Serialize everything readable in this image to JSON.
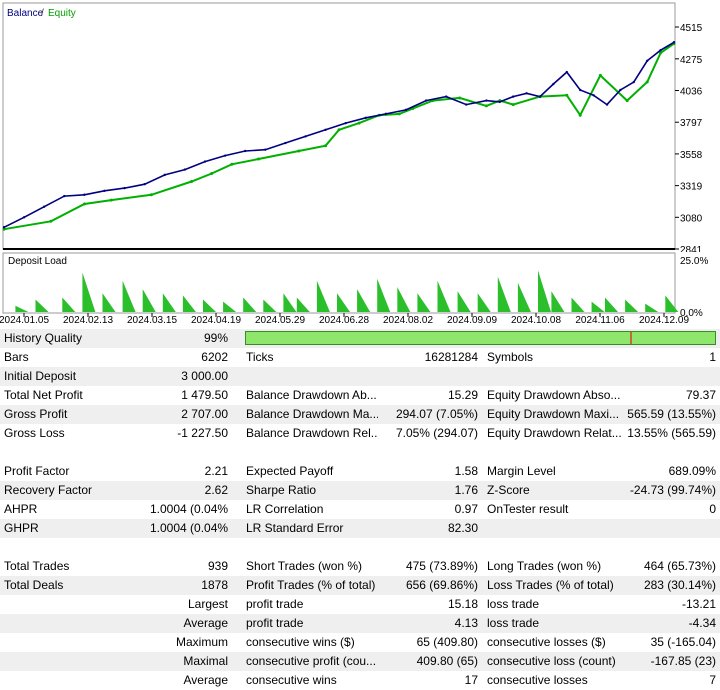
{
  "chart_data": [
    {
      "type": "line",
      "legend": [
        "Balance",
        "Equity"
      ],
      "legend_placement": "top-left",
      "y_ticks": [
        "4515",
        "4275",
        "4036",
        "3797",
        "3558",
        "3319",
        "3080",
        "2841"
      ],
      "ylim": [
        2841,
        4515
      ],
      "series": [
        {
          "name": "Balance",
          "color": "#000080",
          "x": [
            0,
            0.03,
            0.06,
            0.09,
            0.12,
            0.15,
            0.18,
            0.21,
            0.24,
            0.27,
            0.3,
            0.33,
            0.36,
            0.39,
            0.42,
            0.45,
            0.48,
            0.51,
            0.54,
            0.57,
            0.6,
            0.63,
            0.66,
            0.69,
            0.72,
            0.74,
            0.76,
            0.78,
            0.8,
            0.82,
            0.84,
            0.86,
            0.88,
            0.9,
            0.92,
            0.94,
            0.96,
            0.98,
            1.0
          ],
          "values": [
            3005,
            3080,
            3160,
            3240,
            3250,
            3280,
            3300,
            3330,
            3400,
            3440,
            3500,
            3545,
            3580,
            3590,
            3640,
            3690,
            3740,
            3790,
            3830,
            3860,
            3890,
            3960,
            3990,
            3930,
            3960,
            3950,
            3990,
            4015,
            3990,
            4085,
            4175,
            4040,
            4000,
            3930,
            4040,
            4100,
            4260,
            4340,
            4400
          ]
        },
        {
          "name": "Equity",
          "color": "#00b000",
          "x": [
            0,
            0.07,
            0.12,
            0.16,
            0.22,
            0.28,
            0.31,
            0.34,
            0.38,
            0.44,
            0.48,
            0.5,
            0.53,
            0.56,
            0.59,
            0.61,
            0.64,
            0.68,
            0.72,
            0.74,
            0.76,
            0.8,
            0.84,
            0.86,
            0.89,
            0.93,
            0.96,
            0.98,
            1.0
          ],
          "values": [
            2990,
            3050,
            3180,
            3210,
            3250,
            3350,
            3410,
            3480,
            3520,
            3580,
            3620,
            3740,
            3790,
            3850,
            3860,
            3900,
            3960,
            3980,
            3920,
            3960,
            3930,
            3990,
            4000,
            3850,
            4150,
            3960,
            4100,
            4320,
            4390
          ]
        }
      ]
    },
    {
      "type": "area",
      "title": "Deposit Load",
      "y_ticks": [
        "25.0%",
        "0.0%"
      ],
      "ylim": [
        0,
        25
      ],
      "x_ticks": [
        "2024.01.05",
        "2024.02.13",
        "2024.03.15",
        "2024.04.19",
        "2024.05.29",
        "2024.06.28",
        "2024.08.02",
        "2024.09.09",
        "2024.10.08",
        "2024.11.06",
        "2024.12.09"
      ],
      "peaks": [
        {
          "x": 0.02,
          "v": 3
        },
        {
          "x": 0.05,
          "v": 6
        },
        {
          "x": 0.09,
          "v": 7
        },
        {
          "x": 0.12,
          "v": 19
        },
        {
          "x": 0.15,
          "v": 9
        },
        {
          "x": 0.18,
          "v": 15
        },
        {
          "x": 0.21,
          "v": 11
        },
        {
          "x": 0.24,
          "v": 9
        },
        {
          "x": 0.27,
          "v": 8
        },
        {
          "x": 0.3,
          "v": 6
        },
        {
          "x": 0.33,
          "v": 5
        },
        {
          "x": 0.36,
          "v": 7
        },
        {
          "x": 0.39,
          "v": 6
        },
        {
          "x": 0.42,
          "v": 9
        },
        {
          "x": 0.44,
          "v": 7
        },
        {
          "x": 0.47,
          "v": 15
        },
        {
          "x": 0.5,
          "v": 9
        },
        {
          "x": 0.53,
          "v": 11
        },
        {
          "x": 0.56,
          "v": 16
        },
        {
          "x": 0.59,
          "v": 12
        },
        {
          "x": 0.62,
          "v": 9
        },
        {
          "x": 0.65,
          "v": 15
        },
        {
          "x": 0.68,
          "v": 10
        },
        {
          "x": 0.71,
          "v": 9
        },
        {
          "x": 0.74,
          "v": 17
        },
        {
          "x": 0.77,
          "v": 14
        },
        {
          "x": 0.8,
          "v": 20
        },
        {
          "x": 0.82,
          "v": 10
        },
        {
          "x": 0.85,
          "v": 7
        },
        {
          "x": 0.88,
          "v": 5
        },
        {
          "x": 0.9,
          "v": 7
        },
        {
          "x": 0.93,
          "v": 6
        },
        {
          "x": 0.96,
          "v": 4
        },
        {
          "x": 0.99,
          "v": 8
        }
      ]
    }
  ],
  "report": {
    "history_quality": {
      "label": "History Quality",
      "value": "99%",
      "fill_percent": 99
    },
    "rows_top": [
      {
        "l1": "Bars",
        "v1": "6202",
        "l2": "Ticks",
        "v2": "16281284",
        "l3": "Symbols",
        "v3": "1"
      },
      {
        "l1": "Initial Deposit",
        "v1": "3 000.00",
        "l2": "",
        "v2": "",
        "l3": "",
        "v3": ""
      },
      {
        "l1": "Total Net Profit",
        "v1": "1 479.50",
        "l2": "Balance Drawdown Ab...",
        "v2": "15.29",
        "l3": "Equity Drawdown Abso...",
        "v3": "79.37"
      },
      {
        "l1": "Gross Profit",
        "v1": "2 707.00",
        "l2": "Balance Drawdown Ma...",
        "v2": "294.07 (7.05%)",
        "l3": "Equity Drawdown Maxi...",
        "v3": "565.59 (13.55%)"
      },
      {
        "l1": "Gross Loss",
        "v1": "-1 227.50",
        "l2": "Balance Drawdown Rel...",
        "v2": "7.05% (294.07)",
        "l3": "Equity Drawdown Relat...",
        "v3": "13.55% (565.59)"
      }
    ],
    "rows_mid": [
      {
        "l1": "Profit Factor",
        "v1": "2.21",
        "l2": "Expected Payoff",
        "v2": "1.58",
        "l3": "Margin Level",
        "v3": "689.09%"
      },
      {
        "l1": "Recovery Factor",
        "v1": "2.62",
        "l2": "Sharpe Ratio",
        "v2": "1.76",
        "l3": "Z-Score",
        "v3": "-24.73 (99.74%)"
      },
      {
        "l1": "AHPR",
        "v1": "1.0004 (0.04%)",
        "l2": "LR Correlation",
        "v2": "0.97",
        "l3": "OnTester result",
        "v3": "0"
      },
      {
        "l1": "GHPR",
        "v1": "1.0004 (0.04%)",
        "l2": "LR Standard Error",
        "v2": "82.30",
        "l3": "",
        "v3": ""
      }
    ],
    "rows_bottom": [
      {
        "l1": "Total Trades",
        "v1": "939",
        "l2": "Short Trades (won %)",
        "v2": "475 (73.89%)",
        "l3": "Long Trades (won %)",
        "v3": "464 (65.73%)"
      },
      {
        "l1": "Total Deals",
        "v1": "1878",
        "l2": "Profit Trades (% of total)",
        "v2": "656 (69.86%)",
        "l3": "Loss Trades (% of total)",
        "v3": "283 (30.14%)"
      }
    ],
    "rows_right": [
      {
        "r1": "Largest",
        "l2": "profit trade",
        "v2": "15.18",
        "l3": "loss trade",
        "v3": "-13.21"
      },
      {
        "r1": "Average",
        "l2": "profit trade",
        "v2": "4.13",
        "l3": "loss trade",
        "v3": "-4.34"
      },
      {
        "r1": "Maximum",
        "l2": "consecutive wins ($)",
        "v2": "65 (409.80)",
        "l3": "consecutive losses ($)",
        "v3": "35 (-165.04)"
      },
      {
        "r1": "Maximal",
        "l2": "consecutive profit (cou...",
        "v2": "409.80 (65)",
        "l3": "consecutive loss (count)",
        "v3": "-167.85 (23)"
      },
      {
        "r1": "Average",
        "l2": "consecutive wins",
        "v2": "17",
        "l3": "consecutive losses",
        "v3": "7"
      }
    ]
  }
}
